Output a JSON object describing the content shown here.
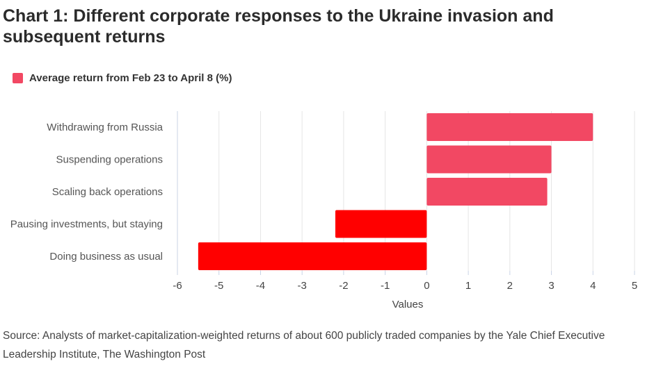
{
  "title": "Chart 1: Different corporate responses to the Ukraine invasion and subsequent returns",
  "source": "Source: Analysts of market-capitalization-weighted returns of about 600 publicly traded companies by the Yale Chief Executive Leadership Institute, The Washington Post",
  "colors": {
    "positive": "#f24863",
    "negative": "#ff0000",
    "legend": "#f24863",
    "grid": "#e5e5e5"
  },
  "chart_data": {
    "type": "bar",
    "orientation": "horizontal",
    "categories": [
      "Withdrawing from Russia",
      "Suspending operations",
      "Scaling back operations",
      "Pausing investments, but staying",
      "Doing business as usual"
    ],
    "series": [
      {
        "name": "Average return from Feb 23 to April 8 (%)",
        "values": [
          4.0,
          3.0,
          2.9,
          -2.2,
          -5.5
        ]
      }
    ],
    "xlabel": "Values",
    "ylabel": "",
    "xlim": [
      -6,
      5
    ],
    "xticks": [
      -6,
      -5,
      -4,
      -3,
      -2,
      -1,
      0,
      1,
      2,
      3,
      4,
      5
    ],
    "grid": true,
    "legend": "top-left"
  }
}
